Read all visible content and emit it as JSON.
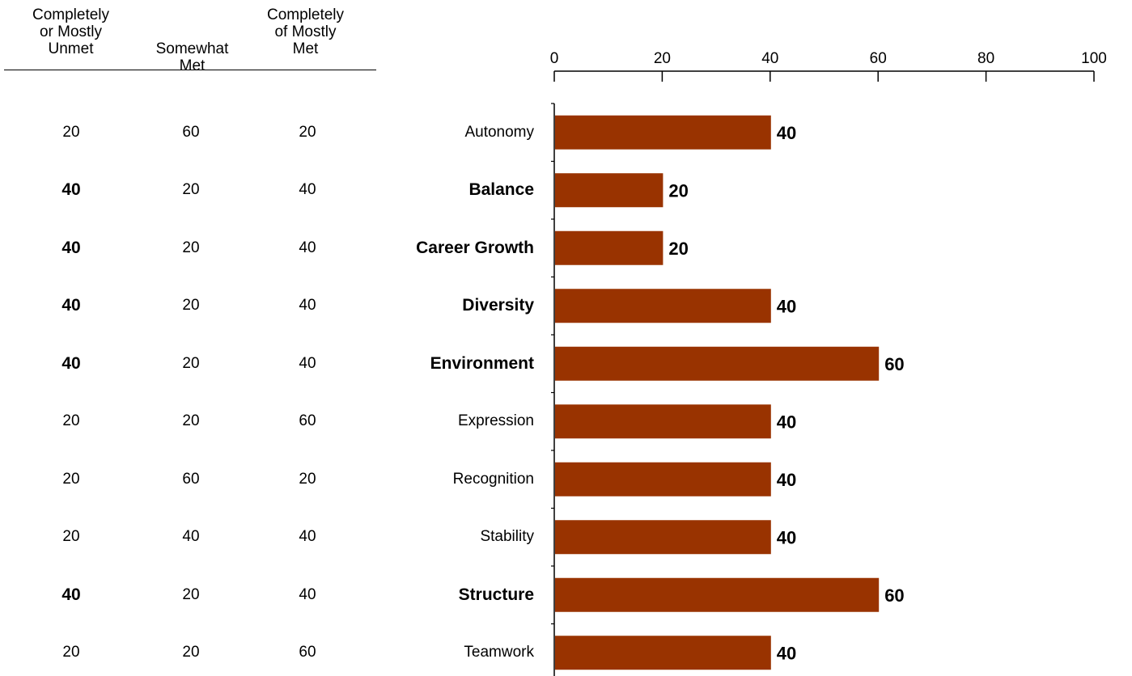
{
  "table": {
    "headers": [
      [
        "Completely",
        "or Mostly",
        "Unmet"
      ],
      [
        "Somewhat",
        "Met"
      ],
      [
        "Completely",
        "of Mostly",
        "Met"
      ]
    ],
    "rows": [
      {
        "category": "Autonomy",
        "unmet": "20",
        "somewhat": "60",
        "met": "20",
        "bold": false
      },
      {
        "category": "Balance",
        "unmet": "40",
        "somewhat": "20",
        "met": "40",
        "bold": true
      },
      {
        "category": "Career Growth",
        "unmet": "40",
        "somewhat": "20",
        "met": "40",
        "bold": true
      },
      {
        "category": "Diversity",
        "unmet": "40",
        "somewhat": "20",
        "met": "40",
        "bold": true
      },
      {
        "category": "Environment",
        "unmet": "40",
        "somewhat": "20",
        "met": "40",
        "bold": true
      },
      {
        "category": "Expression",
        "unmet": "20",
        "somewhat": "20",
        "met": "60",
        "bold": false
      },
      {
        "category": "Recognition",
        "unmet": "20",
        "somewhat": "60",
        "met": "20",
        "bold": false
      },
      {
        "category": "Stability",
        "unmet": "20",
        "somewhat": "40",
        "met": "40",
        "bold": false
      },
      {
        "category": "Structure",
        "unmet": "40",
        "somewhat": "20",
        "met": "40",
        "bold": true
      },
      {
        "category": "Teamwork",
        "unmet": "20",
        "somewhat": "20",
        "met": "60",
        "bold": false
      }
    ]
  },
  "chart_data": {
    "type": "bar",
    "orientation": "horizontal",
    "categories": [
      "Autonomy",
      "Balance",
      "Career Growth",
      "Diversity",
      "Environment",
      "Expression",
      "Recognition",
      "Stability",
      "Structure",
      "Teamwork"
    ],
    "values": [
      40,
      20,
      20,
      40,
      60,
      40,
      40,
      40,
      60,
      40
    ],
    "data_labels": [
      "40",
      "20",
      "20",
      "40",
      "60",
      "40",
      "40",
      "40",
      "60",
      "40"
    ],
    "xlim": [
      0,
      100
    ],
    "ticks": [
      "0",
      "20",
      "40",
      "60",
      "80",
      "100"
    ],
    "bar_color": "#993300",
    "axis_position": "top",
    "grid": false
  }
}
